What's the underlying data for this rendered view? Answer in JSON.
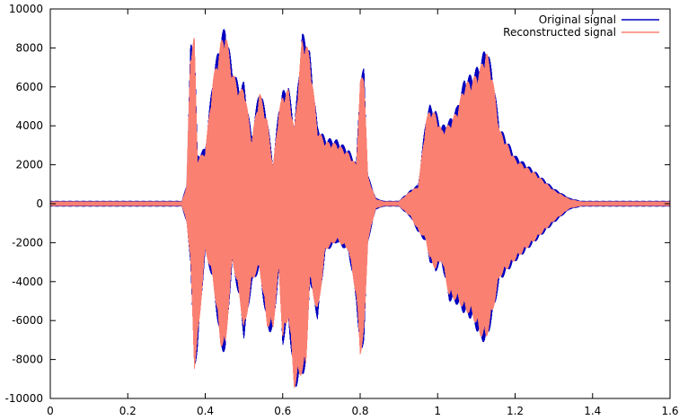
{
  "chart_data": {
    "type": "area",
    "title": "",
    "xlabel": "",
    "ylabel": "",
    "xlim": [
      0,
      1.6
    ],
    "ylim": [
      -10000,
      10000
    ],
    "xticks": [
      0,
      0.2,
      0.4,
      0.6,
      0.8,
      1,
      1.2,
      1.4,
      1.6
    ],
    "xtick_labels": [
      "0",
      "0.2",
      "0.4",
      "0.6",
      "0.8",
      "1",
      "1.2",
      "1.4",
      "1.6"
    ],
    "yticks": [
      -10000,
      -8000,
      -6000,
      -4000,
      -2000,
      0,
      2000,
      4000,
      6000,
      8000,
      10000
    ],
    "ytick_labels": [
      "-10000",
      "-8000",
      "-6000",
      "-4000",
      "-2000",
      "0",
      "2000",
      "4000",
      "6000",
      "8000",
      "10000"
    ],
    "grid": false,
    "legend_position": "top-right",
    "series": [
      {
        "name": "Original signal",
        "color": "#0000c0",
        "x": [
          0,
          0.34,
          0.352,
          0.362,
          0.372,
          0.38,
          0.4,
          0.42,
          0.44,
          0.452,
          0.47,
          0.49,
          0.5,
          0.52,
          0.54,
          0.56,
          0.575,
          0.59,
          0.6,
          0.615,
          0.63,
          0.65,
          0.66,
          0.67,
          0.69,
          0.71,
          0.74,
          0.77,
          0.79,
          0.8,
          0.81,
          0.82,
          0.84,
          0.86,
          0.9,
          0.93,
          0.95,
          0.97,
          0.98,
          0.995,
          1.01,
          1.03,
          1.05,
          1.07,
          1.09,
          1.11,
          1.125,
          1.14,
          1.16,
          1.2,
          1.25,
          1.3,
          1.34,
          1.37,
          1.6
        ],
        "upper": [
          150,
          150,
          1000,
          8200,
          8800,
          2500,
          2900,
          6600,
          8600,
          9200,
          7000,
          6000,
          6300,
          3500,
          6000,
          4500,
          2000,
          5000,
          5800,
          6100,
          4000,
          8800,
          8500,
          7800,
          4000,
          3400,
          3300,
          2800,
          2100,
          6500,
          7000,
          1500,
          300,
          150,
          150,
          700,
          1000,
          4500,
          5100,
          4800,
          4000,
          4300,
          5000,
          6500,
          6700,
          7300,
          8200,
          7000,
          4000,
          2500,
          1700,
          800,
          300,
          150,
          150
        ],
        "lower": [
          -150,
          -150,
          -1000,
          -3000,
          -8700,
          -7500,
          -2500,
          -4000,
          -7500,
          -7700,
          -3000,
          -5200,
          -7000,
          -4200,
          -3400,
          -6500,
          -6700,
          -3500,
          -7300,
          -6000,
          -9600,
          -8800,
          -8600,
          -4000,
          -6000,
          -2500,
          -2000,
          -2500,
          -5000,
          -8000,
          -7000,
          -2000,
          -300,
          -150,
          -150,
          -700,
          -1500,
          -2000,
          -3000,
          -3500,
          -3000,
          -5000,
          -5200,
          -5700,
          -6000,
          -7000,
          -7200,
          -6000,
          -4000,
          -3000,
          -2000,
          -1000,
          -300,
          -150,
          -150
        ]
      },
      {
        "name": "Reconstructed signal",
        "color": "#fa8072",
        "x": [
          0,
          0.34,
          0.352,
          0.362,
          0.372,
          0.38,
          0.4,
          0.42,
          0.44,
          0.452,
          0.47,
          0.49,
          0.5,
          0.52,
          0.54,
          0.56,
          0.575,
          0.59,
          0.6,
          0.615,
          0.63,
          0.65,
          0.66,
          0.67,
          0.69,
          0.71,
          0.74,
          0.77,
          0.79,
          0.8,
          0.81,
          0.82,
          0.84,
          0.86,
          0.9,
          0.93,
          0.95,
          0.97,
          0.98,
          0.995,
          1.01,
          1.03,
          1.05,
          1.07,
          1.09,
          1.11,
          1.125,
          1.14,
          1.16,
          1.2,
          1.25,
          1.3,
          1.34,
          1.37,
          1.6
        ],
        "upper": [
          120,
          120,
          900,
          8000,
          8600,
          2300,
          2700,
          6400,
          8300,
          8900,
          6800,
          5800,
          6100,
          3300,
          5800,
          4300,
          1900,
          4800,
          5600,
          5900,
          3800,
          8500,
          8300,
          7600,
          3800,
          3200,
          3100,
          2600,
          2000,
          6300,
          6800,
          1400,
          250,
          120,
          120,
          650,
          900,
          4300,
          4900,
          4600,
          3800,
          4100,
          4800,
          6200,
          6400,
          7000,
          7900,
          6800,
          3800,
          2300,
          1600,
          700,
          250,
          120,
          120
        ],
        "lower": [
          -120,
          -120,
          -900,
          -2900,
          -8500,
          -7300,
          -2400,
          -3900,
          -7300,
          -7500,
          -2900,
          -5000,
          -6800,
          -4000,
          -3300,
          -6300,
          -6500,
          -3400,
          -7100,
          -5800,
          -9500,
          -8700,
          -8500,
          -3900,
          -5800,
          -2400,
          -1900,
          -2400,
          -4800,
          -7800,
          -6800,
          -1900,
          -250,
          -120,
          -120,
          -650,
          -1400,
          -1900,
          -2900,
          -3400,
          -2900,
          -4800,
          -5000,
          -5500,
          -5800,
          -6800,
          -7000,
          -5800,
          -3800,
          -2900,
          -1900,
          -900,
          -250,
          -120,
          -120
        ]
      }
    ]
  }
}
